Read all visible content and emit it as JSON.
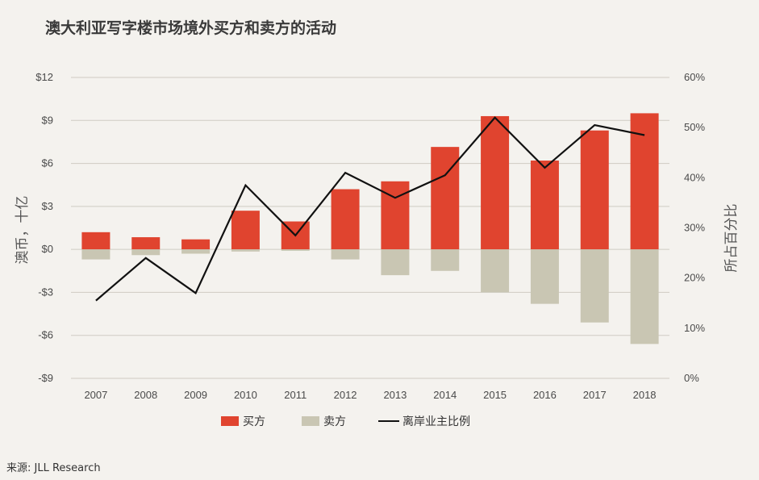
{
  "title": "澳大利亚写字楼市场境外买方和卖方的活动",
  "source": "来源: JLL Research",
  "colors": {
    "buy": "#e0442f",
    "sell": "#c9c6b3",
    "line": "#111111",
    "grid": "#cfcbc3"
  },
  "chart_data": {
    "type": "bar+line",
    "title": "澳大利亚写字楼市场境外买方和卖方的活动",
    "categories": [
      "2007",
      "2008",
      "2009",
      "2010",
      "2011",
      "2012",
      "2013",
      "2014",
      "2015",
      "2016",
      "2017",
      "2018"
    ],
    "ylabel_left": "澳币，十亿",
    "ylabel_right": "所占百分比",
    "ylim_left": [
      -9,
      12
    ],
    "yticks_left": [
      12,
      9,
      6,
      3,
      0,
      -3,
      -6,
      -9
    ],
    "yticks_left_labels": [
      "$12",
      "$9",
      "$6",
      "$3",
      "$0",
      "-$3",
      "-$6",
      "-$9"
    ],
    "ylim_right": [
      0,
      60
    ],
    "yticks_right": [
      60,
      50,
      40,
      30,
      20,
      10,
      0
    ],
    "yticks_right_labels": [
      "60%",
      "50%",
      "40%",
      "30%",
      "20%",
      "10%",
      "0%"
    ],
    "grid": true,
    "legend_position": "bottom",
    "series": [
      {
        "name": "买方",
        "type": "bar",
        "axis": "left",
        "values": [
          1.2,
          0.85,
          0.7,
          2.7,
          1.95,
          4.2,
          4.75,
          7.15,
          9.3,
          6.2,
          8.3,
          9.5
        ]
      },
      {
        "name": "卖方",
        "type": "bar",
        "axis": "left",
        "values": [
          -0.7,
          -0.4,
          -0.3,
          -0.15,
          -0.1,
          -0.7,
          -1.8,
          -1.5,
          -3.0,
          -3.8,
          -5.1,
          -6.6
        ]
      },
      {
        "name": "离岸业主比例",
        "type": "line",
        "axis": "right",
        "values": [
          15.5,
          24,
          17,
          38.5,
          28.5,
          41,
          36,
          40.5,
          52,
          42,
          50.5,
          48.5
        ]
      }
    ]
  }
}
